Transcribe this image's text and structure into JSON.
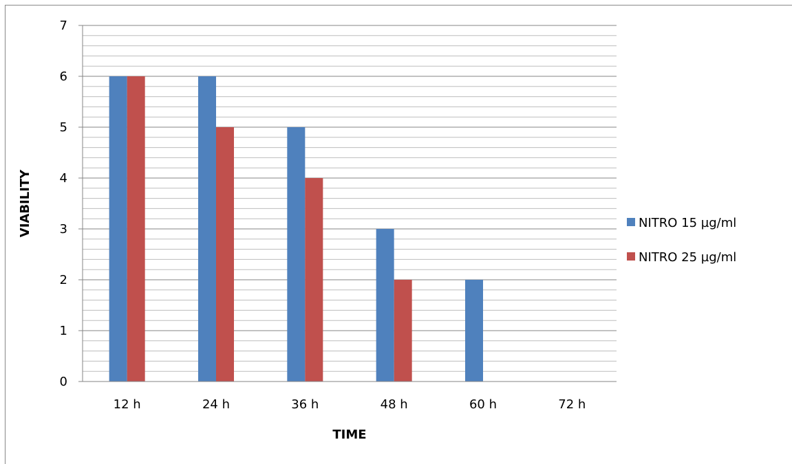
{
  "chart_data": {
    "type": "bar",
    "title": "",
    "xlabel": "TIME",
    "ylabel": "VIABILITY",
    "categories": [
      "12 h",
      "24 h",
      "36 h",
      "48 h",
      "60 h",
      "72 h"
    ],
    "series": [
      {
        "name": "NITRO 15 µg/ml",
        "color": "#4F81BD",
        "values": [
          6,
          6,
          5,
          3,
          2,
          0
        ]
      },
      {
        "name": "NITRO 25 µg/ml",
        "color": "#C0504D",
        "values": [
          6,
          5,
          4,
          2,
          0,
          0
        ]
      }
    ],
    "ylim": [
      0,
      7
    ],
    "yticks": [
      "0",
      "1",
      "2",
      "3",
      "4",
      "5",
      "6",
      "7"
    ],
    "major_grid": true,
    "minor_grid": true,
    "legend_position": "right"
  }
}
